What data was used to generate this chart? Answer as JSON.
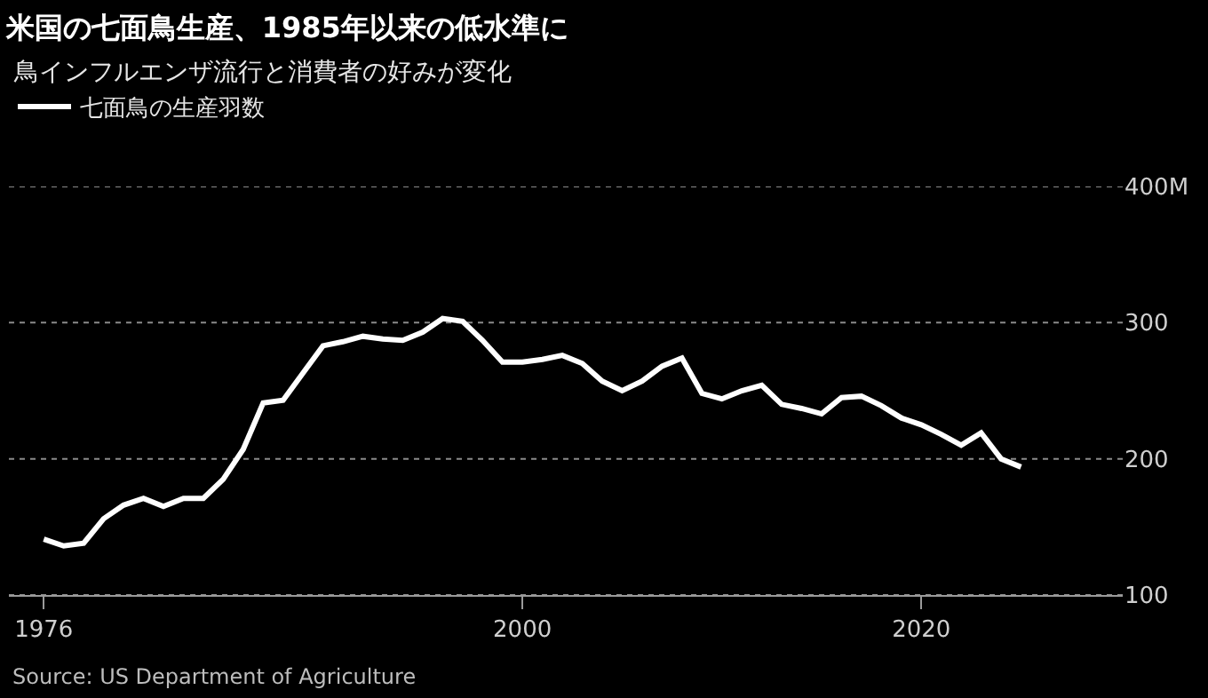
{
  "chart_data": {
    "type": "line",
    "title": "米国の七面鳥生産、1985年以来の低水準に",
    "subtitle": "鳥インフルエンザ流行と消費者の好みが変化",
    "x": [
      1976,
      1977,
      1978,
      1979,
      1980,
      1981,
      1982,
      1983,
      1984,
      1985,
      1986,
      1987,
      1988,
      1989,
      1990,
      1991,
      1992,
      1993,
      1994,
      1995,
      1996,
      1997,
      1998,
      1999,
      2000,
      2001,
      2002,
      2003,
      2004,
      2005,
      2006,
      2007,
      2008,
      2009,
      2010,
      2011,
      2012,
      2013,
      2014,
      2015,
      2016,
      2017,
      2018,
      2019,
      2020,
      2021,
      2022,
      2023,
      2024,
      2025
    ],
    "series": [
      {
        "name": "七面鳥の生産羽数",
        "color": "#ffffff",
        "values": [
          141,
          136,
          138,
          156,
          166,
          171,
          165,
          171,
          171,
          185,
          207,
          241,
          243,
          263,
          283,
          286,
          290,
          288,
          287,
          293,
          303,
          301,
          287,
          271,
          271,
          273,
          276,
          270,
          257,
          250,
          257,
          268,
          274,
          248,
          244,
          250,
          254,
          240,
          237,
          233,
          245,
          246,
          239,
          230,
          225,
          218,
          210,
          219,
          200,
          194
        ]
      }
    ],
    "xlim": [
      1974.25,
      2030.1
    ],
    "xticks": [
      1976,
      2000,
      2020
    ],
    "ylim": [
      100,
      400
    ],
    "yticks": [
      {
        "value": 100,
        "label": "100"
      },
      {
        "value": 200,
        "label": "200"
      },
      {
        "value": 300,
        "label": "300"
      },
      {
        "value": 400,
        "label": "400M"
      }
    ],
    "grid": "y",
    "legend": "top left",
    "line_style": "solid",
    "marker": "none",
    "annotations": [
      "Source: US Department of Agriculture"
    ]
  }
}
